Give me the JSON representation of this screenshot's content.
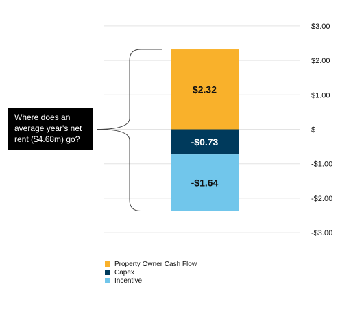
{
  "callout": {
    "lines": [
      "Where does an",
      "average year's net",
      "rent ($4.68m) go?"
    ]
  },
  "chart_data": {
    "type": "bar",
    "stacked": true,
    "categories": [
      ""
    ],
    "series": [
      {
        "name": "Property Owner Cash Flow",
        "values": [
          2.32
        ],
        "label": "$2.32",
        "color": "#F9B12B"
      },
      {
        "name": "Capex",
        "values": [
          -0.73
        ],
        "label": "-$0.73",
        "color": "#003A5C"
      },
      {
        "name": "Incentive",
        "values": [
          -1.64
        ],
        "label": "-$1.64",
        "color": "#71C6EB"
      }
    ],
    "ylim": [
      -3,
      3
    ],
    "ytick_values": [
      3,
      2,
      1,
      0,
      -1,
      -2,
      -3
    ],
    "ytick_labels": [
      "$3.00",
      "$2.00",
      "$1.00",
      "$-",
      "-$1.00",
      "-$2.00",
      "-$3.00"
    ],
    "grid": true,
    "legend": "bottom-left"
  }
}
